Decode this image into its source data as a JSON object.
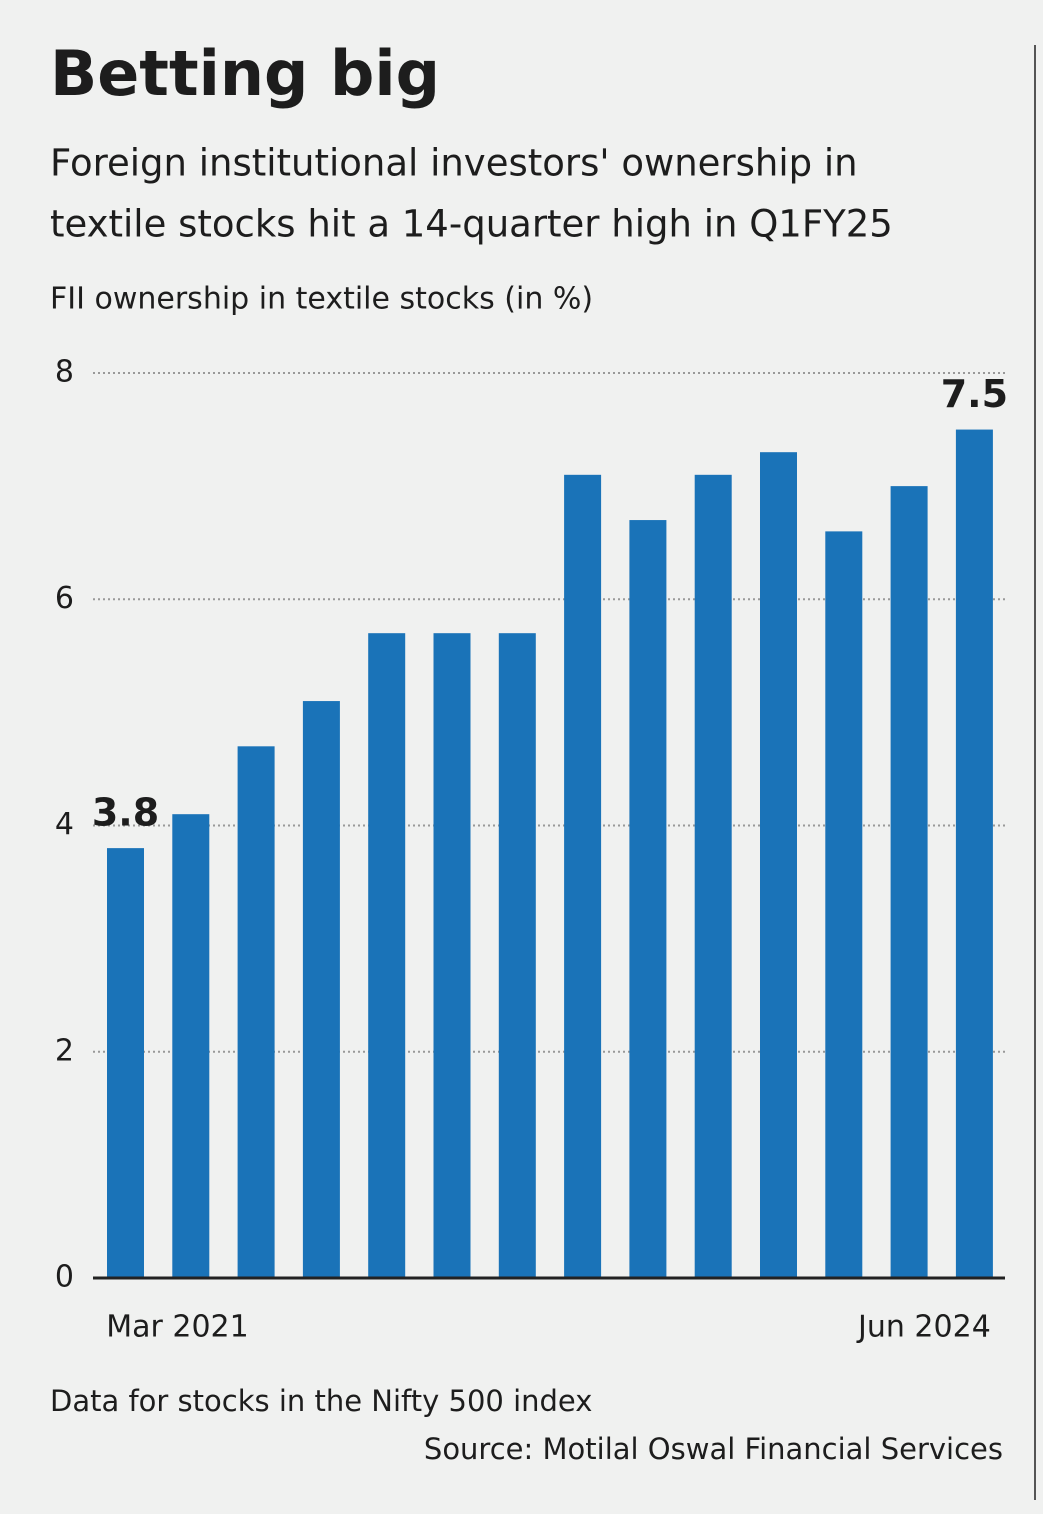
{
  "chart_data": {
    "type": "bar",
    "title": "Betting big",
    "subtitle": [
      "Foreign institutional investors' ownership in",
      "textile stocks hit a 14-quarter high in Q1FY25"
    ],
    "y_axis_title": "FII ownership in textile stocks (in %)",
    "categories": [
      "Mar 2021",
      null,
      null,
      null,
      null,
      null,
      null,
      null,
      null,
      null,
      null,
      null,
      null,
      "Jun 2024"
    ],
    "values": [
      3.8,
      4.1,
      4.7,
      5.1,
      5.7,
      5.7,
      5.7,
      7.1,
      6.7,
      7.1,
      7.3,
      6.6,
      7.0,
      7.5
    ],
    "value_labels": [
      "3.8",
      null,
      null,
      null,
      null,
      null,
      null,
      null,
      null,
      null,
      null,
      null,
      null,
      "7.5"
    ],
    "color": "#1a73b8",
    "ylim": [
      0,
      8
    ],
    "yticks": [
      0,
      2,
      4,
      6,
      8
    ],
    "grid": true,
    "note": "Data for stocks in the Nifty 500 index",
    "source": "Source: Motilal Oswal Financial Services"
  }
}
